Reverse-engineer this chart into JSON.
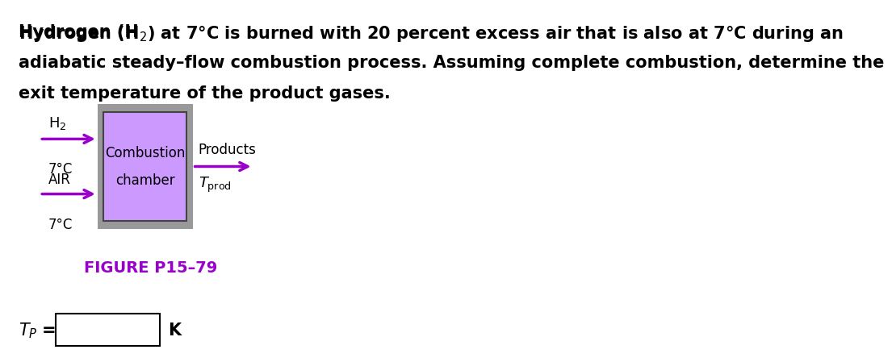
{
  "title_line1": "Hydrogen (H",
  "title_h2_sub": "2",
  "title_line1_end": ") at 7°C is burned with 20 percent excess air that is also at 7°C during an",
  "title_line2": "adiabatic steady–flow combustion process. Assuming complete combustion, determine the",
  "title_line3": "exit temperature of the product gases.",
  "h2_label": "H",
  "h2_sub": "2",
  "temp1": "7°C",
  "air_label": "AIR",
  "temp2": "7°C",
  "chamber_text1": "Combustion",
  "chamber_text2": "chamber",
  "products_label": "Products",
  "t_prod_label": "T",
  "t_prod_sub": "prod",
  "figure_label": "FIGURE P15–79",
  "tp_label": "T",
  "tp_sub": "P",
  "k_label": "K",
  "arrow_color": "#9900cc",
  "box_outer_color": "#999999",
  "box_inner_color": "#cc99ff",
  "figure_label_color": "#9900cc",
  "text_color": "#000000",
  "bg_color": "#ffffff",
  "font_size_title": 15,
  "font_size_body": 14
}
